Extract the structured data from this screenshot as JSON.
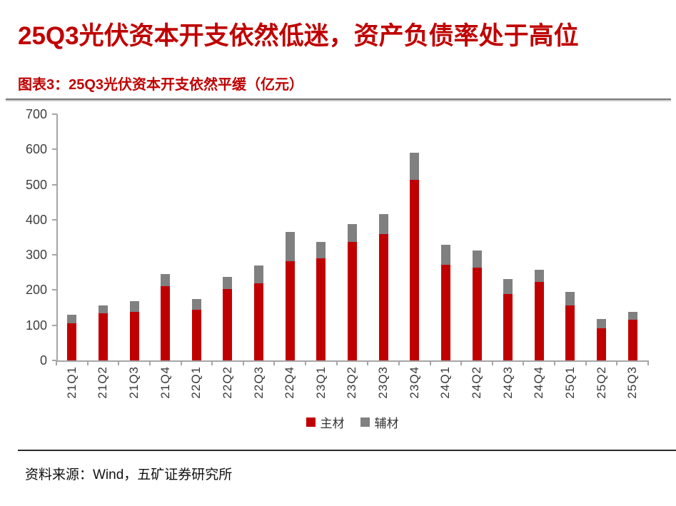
{
  "header": {
    "title": "25Q3光伏资本开支依然低迷，资产负债率处于高位"
  },
  "figure": {
    "caption": "图表3：25Q3光伏资本开支依然平缓（亿元）"
  },
  "footer": {
    "source": "资料来源：Wind，五矿证券研究所"
  },
  "colors": {
    "accent_red": "#C00000",
    "series_main": "#C00000",
    "series_aux": "#808080",
    "axis_gray": "#a6a6a6",
    "label_gray": "#3f3f3f"
  },
  "chart_data": {
    "type": "bar",
    "stacked": true,
    "title": "图表3：25Q3光伏资本开支依然平缓（亿元）",
    "unit": "亿元",
    "xlabel": "",
    "ylabel": "",
    "ylim": [
      0,
      700
    ],
    "yticks": [
      0,
      100,
      200,
      300,
      400,
      500,
      600,
      700
    ],
    "grid": false,
    "legend_position": "bottom",
    "categories": [
      "21Q1",
      "21Q2",
      "21Q3",
      "21Q4",
      "22Q1",
      "22Q2",
      "22Q3",
      "22Q4",
      "23Q1",
      "23Q2",
      "23Q3",
      "23Q4",
      "24Q1",
      "24Q2",
      "24Q3",
      "24Q4",
      "25Q1",
      "25Q2",
      "25Q3"
    ],
    "series": [
      {
        "name": "主材",
        "color": "#C00000",
        "values": [
          106,
          133,
          138,
          212,
          145,
          203,
          220,
          283,
          291,
          336,
          360,
          514,
          272,
          264,
          189,
          224,
          156,
          91,
          115
        ]
      },
      {
        "name": "辅材",
        "color": "#808080",
        "values": [
          24,
          23,
          30,
          33,
          29,
          35,
          50,
          82,
          45,
          52,
          55,
          76,
          56,
          48,
          42,
          33,
          38,
          27,
          22
        ]
      }
    ]
  }
}
